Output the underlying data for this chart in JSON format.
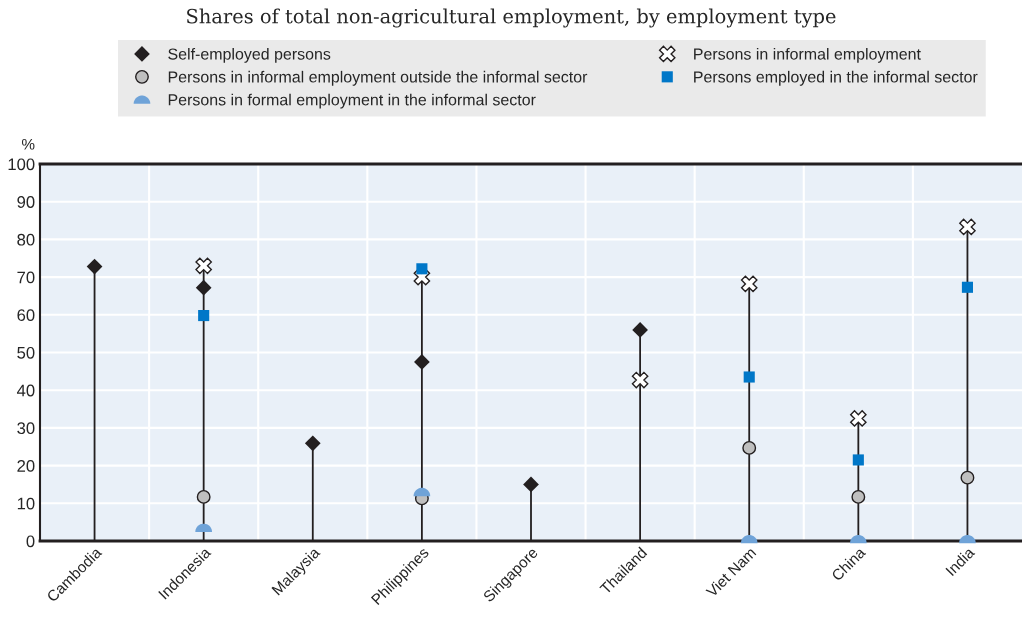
{
  "chart_data": {
    "type": "lollipop",
    "subtitle": "Shares of total non-agricultural employment, by employment type",
    "ylabel": "%",
    "categories": [
      "Cambodia",
      "Indonesia",
      "Malaysia",
      "Philippines",
      "Singapore",
      "Thailand",
      "Viet Nam",
      "China",
      "India"
    ],
    "series": [
      {
        "name": "Self-employed persons",
        "color": "#231f20",
        "marker": "diamond",
        "values": [
          72.8,
          67.2,
          25.9,
          47.5,
          15.0,
          56.0,
          null,
          null,
          null
        ]
      },
      {
        "name": "Persons in informal employment",
        "color": "#ffffff",
        "marker": "cross",
        "values": [
          null,
          73.0,
          null,
          70.0,
          null,
          42.7,
          68.2,
          32.5,
          83.3
        ]
      },
      {
        "name": "Persons in informal employment outside the informal sector",
        "color": "#bfbfbf",
        "marker": "circle",
        "values": [
          null,
          11.7,
          null,
          11.3,
          null,
          null,
          24.7,
          11.7,
          16.8
        ]
      },
      {
        "name": "Persons employed in the informal sector",
        "color": "#0077c8",
        "marker": "square",
        "values": [
          null,
          59.8,
          null,
          72.2,
          null,
          null,
          43.5,
          21.5,
          67.3
        ]
      },
      {
        "name": "Persons in formal employment in the informal sector",
        "color": "#6fa3d8",
        "marker": "semicircle",
        "values": [
          null,
          3.5,
          null,
          13.0,
          null,
          null,
          0.5,
          0.5,
          0.5
        ]
      }
    ],
    "ylim": [
      0,
      100
    ],
    "yticks": [
      0,
      10,
      20,
      30,
      40,
      50,
      60,
      70,
      80,
      90,
      100
    ],
    "grid": true,
    "legend": "top"
  }
}
